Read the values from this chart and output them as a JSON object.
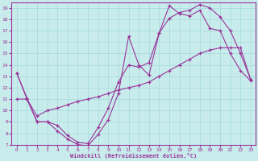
{
  "xlabel": "Windchill (Refroidissement éolien,°C)",
  "bg_color": "#c8ecec",
  "line_color": "#993399",
  "grid_color": "#aadddd",
  "xlim": [
    -0.5,
    23.5
  ],
  "ylim": [
    7,
    19.5
  ],
  "xticks": [
    0,
    1,
    2,
    3,
    4,
    5,
    6,
    7,
    8,
    9,
    10,
    11,
    12,
    13,
    14,
    15,
    16,
    17,
    18,
    19,
    20,
    21,
    22,
    23
  ],
  "yticks": [
    7,
    8,
    9,
    10,
    11,
    12,
    13,
    14,
    15,
    16,
    17,
    18,
    19
  ],
  "line1_x": [
    0,
    1,
    2,
    3,
    4,
    5,
    6,
    7,
    8,
    9,
    10,
    11,
    12,
    13,
    14,
    15,
    16,
    17,
    18,
    19,
    20,
    21,
    22,
    23
  ],
  "line1_y": [
    13.3,
    11.1,
    9.0,
    9.0,
    8.7,
    7.8,
    7.2,
    7.1,
    8.5,
    10.2,
    12.5,
    14.0,
    13.8,
    14.2,
    16.8,
    18.1,
    18.6,
    18.8,
    19.3,
    19.0,
    18.2,
    17.0,
    15.0,
    12.7
  ],
  "line2_x": [
    0,
    1,
    2,
    3,
    4,
    5,
    6,
    7,
    8,
    9,
    10,
    11,
    12,
    13,
    14,
    15,
    16,
    17,
    18,
    19,
    20,
    21,
    22,
    23
  ],
  "line2_y": [
    13.3,
    11.0,
    9.0,
    9.0,
    8.2,
    7.5,
    7.0,
    6.9,
    7.9,
    9.2,
    11.5,
    16.5,
    14.0,
    13.1,
    16.8,
    19.2,
    18.5,
    18.3,
    18.8,
    17.2,
    17.0,
    15.0,
    13.5,
    12.6
  ],
  "line3_x": [
    0,
    1,
    2,
    3,
    4,
    5,
    6,
    7,
    8,
    9,
    10,
    11,
    12,
    13,
    14,
    15,
    16,
    17,
    18,
    19,
    20,
    21,
    22,
    23
  ],
  "line3_y": [
    11.0,
    11.0,
    9.5,
    10.0,
    10.2,
    10.5,
    10.8,
    11.0,
    11.2,
    11.5,
    11.8,
    12.0,
    12.2,
    12.5,
    13.0,
    13.5,
    14.0,
    14.5,
    15.0,
    15.3,
    15.5,
    15.5,
    15.5,
    12.7
  ]
}
